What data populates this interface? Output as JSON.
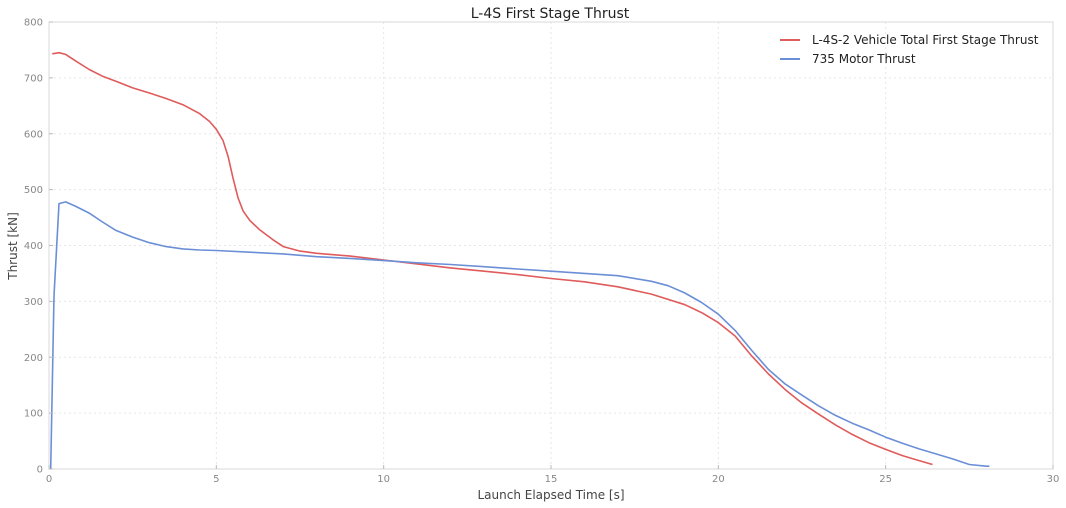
{
  "chart_data": {
    "type": "line",
    "title": "L-4S First Stage Thrust",
    "xlabel": "Launch Elapsed Time [s]",
    "ylabel": "Thrust [kN]",
    "xlim": [
      0,
      30
    ],
    "ylim": [
      0,
      800
    ],
    "xticks": [
      0,
      5,
      10,
      15,
      20,
      25,
      30
    ],
    "yticks": [
      0,
      100,
      200,
      300,
      400,
      500,
      600,
      700,
      800
    ],
    "grid": true,
    "legend": "top-right",
    "series": [
      {
        "name": "L-4S-2 Vehicle Total First Stage Thrust",
        "color": "#e05b5b",
        "points": [
          [
            0.1,
            743
          ],
          [
            0.3,
            745
          ],
          [
            0.5,
            742
          ],
          [
            0.8,
            730
          ],
          [
            1.2,
            715
          ],
          [
            1.6,
            703
          ],
          [
            2.0,
            694
          ],
          [
            2.5,
            682
          ],
          [
            3.0,
            673
          ],
          [
            3.5,
            663
          ],
          [
            4.0,
            652
          ],
          [
            4.5,
            636
          ],
          [
            4.8,
            622
          ],
          [
            5.0,
            608
          ],
          [
            5.2,
            588
          ],
          [
            5.35,
            560
          ],
          [
            5.5,
            520
          ],
          [
            5.65,
            485
          ],
          [
            5.8,
            462
          ],
          [
            6.0,
            445
          ],
          [
            6.3,
            428
          ],
          [
            6.7,
            410
          ],
          [
            7.0,
            398
          ],
          [
            7.5,
            390
          ],
          [
            8.0,
            386
          ],
          [
            9.0,
            381
          ],
          [
            10.0,
            374
          ],
          [
            11.0,
            367
          ],
          [
            12.0,
            360
          ],
          [
            13.0,
            354
          ],
          [
            14.0,
            348
          ],
          [
            15.0,
            341
          ],
          [
            16.0,
            335
          ],
          [
            17.0,
            326
          ],
          [
            18.0,
            313
          ],
          [
            19.0,
            294
          ],
          [
            19.5,
            280
          ],
          [
            20.0,
            262
          ],
          [
            20.5,
            238
          ],
          [
            21.0,
            202
          ],
          [
            21.5,
            170
          ],
          [
            22.0,
            142
          ],
          [
            22.5,
            118
          ],
          [
            23.0,
            98
          ],
          [
            23.5,
            79
          ],
          [
            24.0,
            62
          ],
          [
            24.5,
            47
          ],
          [
            25.0,
            35
          ],
          [
            25.5,
            24
          ],
          [
            26.0,
            15
          ],
          [
            26.4,
            8
          ]
        ]
      },
      {
        "name": "735 Motor Thrust",
        "color": "#6b8fd6",
        "points": [
          [
            0.05,
            0
          ],
          [
            0.15,
            310
          ],
          [
            0.3,
            475
          ],
          [
            0.5,
            478
          ],
          [
            0.8,
            470
          ],
          [
            1.2,
            458
          ],
          [
            1.6,
            442
          ],
          [
            2.0,
            427
          ],
          [
            2.5,
            415
          ],
          [
            3.0,
            405
          ],
          [
            3.5,
            398
          ],
          [
            4.0,
            394
          ],
          [
            4.5,
            392
          ],
          [
            5.0,
            391
          ],
          [
            6.0,
            388
          ],
          [
            7.0,
            385
          ],
          [
            8.0,
            380
          ],
          [
            9.0,
            377
          ],
          [
            10.0,
            373
          ],
          [
            11.0,
            369
          ],
          [
            12.0,
            366
          ],
          [
            13.0,
            362
          ],
          [
            14.0,
            358
          ],
          [
            15.0,
            354
          ],
          [
            16.0,
            350
          ],
          [
            17.0,
            346
          ],
          [
            18.0,
            336
          ],
          [
            18.5,
            328
          ],
          [
            19.0,
            315
          ],
          [
            19.5,
            298
          ],
          [
            20.0,
            277
          ],
          [
            20.5,
            248
          ],
          [
            21.0,
            212
          ],
          [
            21.5,
            178
          ],
          [
            22.0,
            152
          ],
          [
            22.5,
            132
          ],
          [
            23.0,
            113
          ],
          [
            23.5,
            96
          ],
          [
            24.0,
            82
          ],
          [
            24.5,
            70
          ],
          [
            25.0,
            57
          ],
          [
            25.5,
            46
          ],
          [
            26.0,
            36
          ],
          [
            26.5,
            27
          ],
          [
            27.0,
            18
          ],
          [
            27.3,
            12
          ],
          [
            27.5,
            8
          ],
          [
            28.0,
            5
          ],
          [
            28.1,
            5
          ]
        ]
      }
    ]
  }
}
